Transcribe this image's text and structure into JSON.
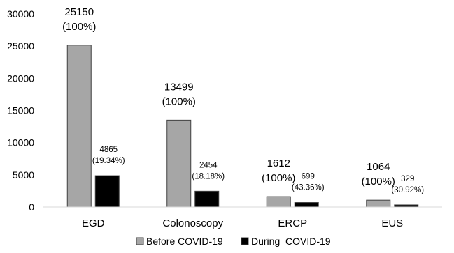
{
  "chart_data": {
    "type": "bar",
    "categories": [
      "EGD",
      "Colonoscopy",
      "ERCP",
      "EUS"
    ],
    "series": [
      {
        "name": "Before COVID-19",
        "color": "#a6a6a6",
        "values": [
          25150,
          13499,
          1612,
          1064
        ],
        "labels": [
          [
            "25150",
            "(100%)"
          ],
          [
            "13499",
            "(100%)"
          ],
          [
            "1612",
            "(100%)"
          ],
          [
            "1064",
            "(100%)"
          ]
        ]
      },
      {
        "name": "During  COVID-19",
        "color": "#000000",
        "values": [
          4865,
          2454,
          699,
          329
        ],
        "labels": [
          [
            "4865",
            "(19.34%)"
          ],
          [
            "2454",
            "(18.18%)"
          ],
          [
            "699",
            "(43.36%)"
          ],
          [
            "329",
            "(30.92%)"
          ]
        ]
      }
    ],
    "yticks": [
      "0",
      "5000",
      "10000",
      "15000",
      "20000",
      "25000",
      "30000"
    ],
    "ylim": [
      0,
      30000
    ],
    "grid": false,
    "legend_position": "bottom"
  }
}
